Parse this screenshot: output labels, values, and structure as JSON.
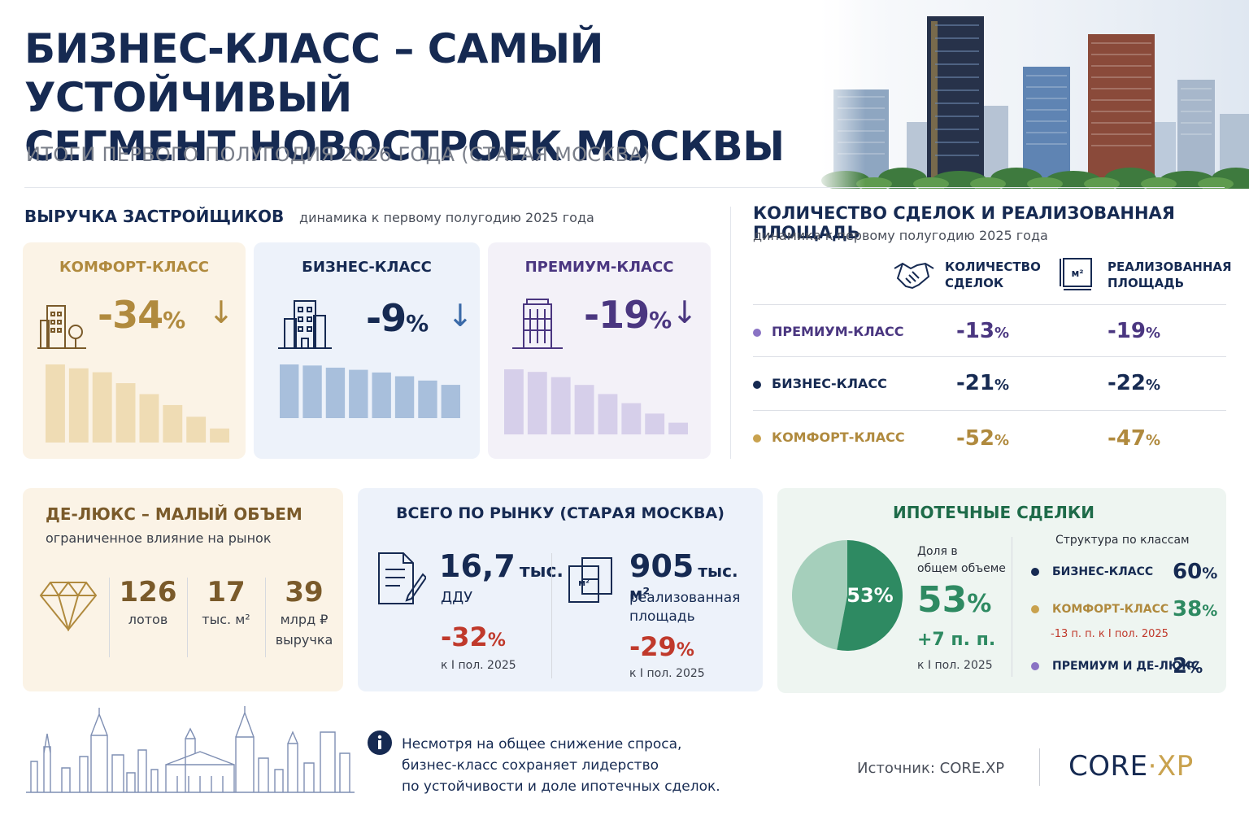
{
  "header": {
    "title_line1": "БИЗНЕС-КЛАСС – САМЫЙ УСТОЙЧИВЫЙ",
    "title_line2": "СЕГМЕНТ НОВОСТРОЕК МОСКВЫ",
    "subtitle": "ИТОГИ ПЕРВОГО ПОЛУГОДИЯ 2026 ГОДА (СТАРАЯ МОСКВА)"
  },
  "revenue": {
    "title": "ВЫРУЧКА ЗАСТРОЙЩИКОВ",
    "subtitle": "динамика к первому полугодию 2025 года",
    "cards": [
      {
        "label": "КОМФОРТ-КЛАСС",
        "value": "-34",
        "unit": "%",
        "arrow": "↓",
        "color": "#b08a3e",
        "bar_color": "#efdcb4",
        "bg": "#fbf3e6"
      },
      {
        "label": "БИЗНЕС-КЛАСС",
        "value": "-9",
        "unit": "%",
        "arrow": "↓",
        "color": "#162a52",
        "bar_color": "#a8bfdc",
        "bg": "#edf2fa"
      },
      {
        "label": "ПРЕМИУМ-КЛАСС",
        "value": "-19",
        "unit": "%",
        "arrow": "↓",
        "color": "#4a3680",
        "bar_color": "#d6cfea",
        "bg": "#f3f1f8"
      }
    ]
  },
  "chart_data": [
    {
      "type": "bar",
      "series": [
        {
          "values": [
            100,
            95,
            90,
            76,
            62,
            48,
            33,
            18
          ]
        }
      ]
    },
    {
      "type": "bar",
      "series": [
        {
          "values": [
            100,
            98,
            94,
            90,
            85,
            78,
            70,
            62
          ]
        }
      ]
    },
    {
      "type": "bar",
      "series": [
        {
          "values": [
            100,
            96,
            88,
            76,
            62,
            48,
            32,
            18
          ]
        }
      ]
    }
  ],
  "deals": {
    "title": "КОЛИЧЕСТВО СДЕЛОК И РЕАЛИЗОВАННАЯ ПЛОЩАДЬ",
    "subtitle": "динамика к первому полугодию 2025 года",
    "col1": [
      "КОЛИЧЕСТВО",
      "СДЕЛОК"
    ],
    "col2": [
      "РЕАЛИЗОВАННАЯ",
      "ПЛОЩАДЬ"
    ],
    "icon_label": "м²",
    "rows": [
      {
        "label": "ПРЕМИУМ-КЛАСС",
        "color": "#4a3680",
        "dot": "#8a73c4",
        "deals": "-13",
        "area": "-19"
      },
      {
        "label": "БИЗНЕС-КЛАСС",
        "color": "#162a52",
        "dot": "#162a52",
        "deals": "-21",
        "area": "-22"
      },
      {
        "label": "КОМФОРТ-КЛАСС",
        "color": "#b08a3e",
        "dot": "#c9a24e",
        "deals": "-52",
        "area": "-47"
      }
    ],
    "unit": "%"
  },
  "deluxe": {
    "title": "ДЕ-ЛЮКС – МАЛЫЙ ОБЪЕМ",
    "subtitle": "ограниченное влияние на рынок",
    "stats": [
      {
        "value": "126",
        "label": "лотов",
        "label2": ""
      },
      {
        "value": "17",
        "label": "тыс. м²",
        "label2": ""
      },
      {
        "value": "39",
        "label": "млрд ₽",
        "label2": "выручка"
      }
    ]
  },
  "market": {
    "title": "ВСЕГО ПО РЫНКУ (СТАРАЯ МОСКВА)",
    "left": {
      "value": "16,7",
      "unit": "тыс.",
      "label": "ДДУ",
      "change": "-32",
      "pct": "%",
      "note": "к I пол. 2025"
    },
    "right": {
      "value": "905",
      "unit": "тыс. м²",
      "label1": "реализованная",
      "label2": "площадь",
      "change": "-29",
      "pct": "%",
      "note": "к I пол. 2025"
    }
  },
  "mortgage": {
    "title": "ИПОТЕЧНЫЕ СДЕЛКИ",
    "pie_value": 53,
    "pie_label": "53%",
    "share_label1": "Доля в",
    "share_label2": "общем объеме",
    "share_value": "53",
    "share_pct": "%",
    "share_change": "+7 п. п.",
    "share_note": "к I пол. 2025",
    "structure_title": "Структура по классам",
    "rows": [
      {
        "label": "БИЗНЕС-КЛАСС",
        "value": "60",
        "dot": "#162a52",
        "note": ""
      },
      {
        "label": "КОМФОРТ-КЛАСС",
        "value": "38",
        "dot": "#c9a24e",
        "note": "-13 п. п. к I пол. 2025"
      },
      {
        "label": "ПРЕМИУМ И ДЕ-ЛЮКС",
        "value": "2",
        "dot": "#8a73c4",
        "note": ""
      }
    ],
    "pct": "%"
  },
  "footer": {
    "info_line1": "Несмотря на общее снижение спроса,",
    "info_line2": "бизнес-класс сохраняет лидерство",
    "info_line3": "по устойчивости и доле ипотечных сделок.",
    "source": "Источник: CORE.XP",
    "logo_part1": "CORE",
    "logo_dot": "·",
    "logo_part2": "XP"
  },
  "colors": {
    "navy": "#162a52",
    "gold": "#b08a3e",
    "purple": "#4a3680",
    "green": "#2e8a62",
    "red": "#c0392b"
  }
}
